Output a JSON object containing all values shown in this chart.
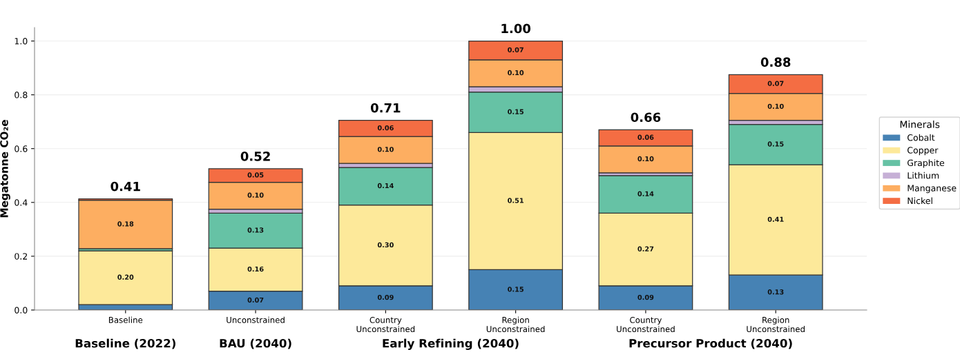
{
  "chart_data": {
    "type": "bar",
    "stacked": true,
    "ylabel": "Megatonne CO₂e",
    "legend_title": "Minerals",
    "categories": [
      "Baseline",
      "Unconstrained",
      "Country\nUnconstrained",
      "Region\nUnconstrained",
      "Country\nUnconstrained",
      "Region\nUnconstrained"
    ],
    "series": [
      {
        "name": "Cobalt",
        "color": "#4682b4",
        "values": [
          0.02,
          0.07,
          0.09,
          0.15,
          0.09,
          0.13
        ],
        "value_labels": [
          null,
          "0.07",
          "0.09",
          "0.15",
          "0.09",
          "0.13"
        ]
      },
      {
        "name": "Copper",
        "color": "#fde99a",
        "values": [
          0.2,
          0.16,
          0.3,
          0.51,
          0.27,
          0.41
        ],
        "value_labels": [
          "0.20",
          "0.16",
          "0.30",
          "0.51",
          "0.27",
          "0.41"
        ]
      },
      {
        "name": "Graphite",
        "color": "#66c2a5",
        "values": [
          0.008,
          0.13,
          0.14,
          0.15,
          0.14,
          0.15
        ],
        "value_labels": [
          null,
          "0.13",
          "0.14",
          "0.15",
          "0.14",
          "0.15"
        ]
      },
      {
        "name": "Lithium",
        "color": "#c6b0d6",
        "values": [
          null,
          0.015,
          0.015,
          0.02,
          0.01,
          0.015
        ],
        "value_labels": [
          null,
          null,
          null,
          null,
          null,
          null
        ]
      },
      {
        "name": "Manganese",
        "color": "#fdae61",
        "values": [
          0.18,
          0.1,
          0.1,
          0.1,
          0.1,
          0.1
        ],
        "value_labels": [
          "0.18",
          "0.10",
          "0.10",
          "0.10",
          "0.10",
          "0.10"
        ]
      },
      {
        "name": "Nickel",
        "color": "#f46d43",
        "values": [
          0.005,
          0.05,
          0.06,
          0.07,
          0.06,
          0.07
        ],
        "value_labels": [
          null,
          "0.05",
          "0.06",
          "0.07",
          "0.06",
          "0.07"
        ]
      }
    ],
    "totals": [
      "0.41",
      "0.52",
      "0.71",
      "1.00",
      "0.66",
      "0.88"
    ],
    "annotations": [
      "Baseline (2022)",
      "BAU (2040)",
      "Early Refining (2040)",
      "Precursor Product (2040)"
    ],
    "ylim": [
      0,
      1.05
    ],
    "yticks": [
      {
        "value": 0,
        "label": "0.0"
      },
      {
        "value": 0.2,
        "label": "0.2"
      },
      {
        "value": 0.4,
        "label": "0.4"
      },
      {
        "value": 0.6,
        "label": "0.6"
      },
      {
        "value": 0.8,
        "label": "0.8"
      },
      {
        "value": 1.0,
        "label": "1.0"
      }
    ],
    "grid": "y",
    "legend": "right"
  }
}
